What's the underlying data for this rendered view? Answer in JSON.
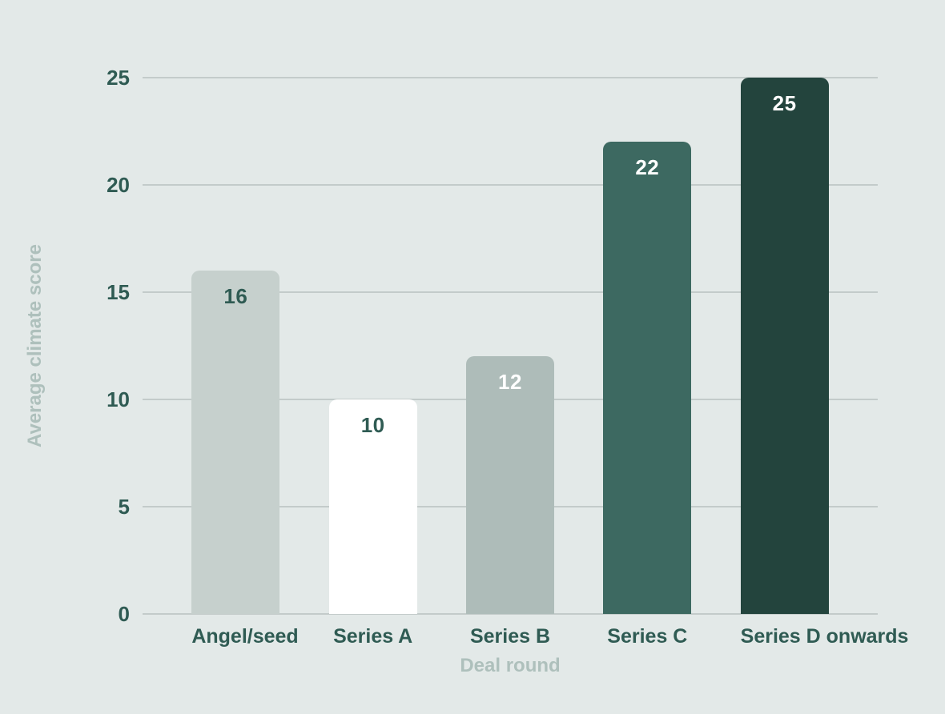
{
  "chart_data": {
    "type": "bar",
    "title": "",
    "categories": [
      "Angel/seed",
      "Series A",
      "Series B",
      "Series C",
      "Series D onwards"
    ],
    "values": [
      16,
      10,
      12,
      22,
      25
    ],
    "value_labels": [
      "16",
      "10",
      "12",
      "22",
      "25"
    ],
    "xlabel": "Deal round",
    "ylabel": "Average climate score",
    "ylim": [
      0,
      25
    ],
    "yticks": [
      0,
      5,
      10,
      15,
      20,
      25
    ],
    "grid": true,
    "legend": false,
    "layout": {
      "bar_corner": "rounded-top",
      "value_label_position": "inside-top"
    },
    "colors": {
      "background": "#e3e9e8",
      "gridline": "#c3cbca",
      "tick_label": "#2f5b53",
      "category_label": "#2f5b53",
      "axis_title": "#aec0bc",
      "bars": [
        "#c6d0cd",
        "#ffffff",
        "#aebcb9",
        "#3d6961",
        "#23443d"
      ],
      "value_labels": [
        "#2f5b53",
        "#2f5b53",
        "#ffffff",
        "#ffffff",
        "#ffffff"
      ]
    }
  }
}
